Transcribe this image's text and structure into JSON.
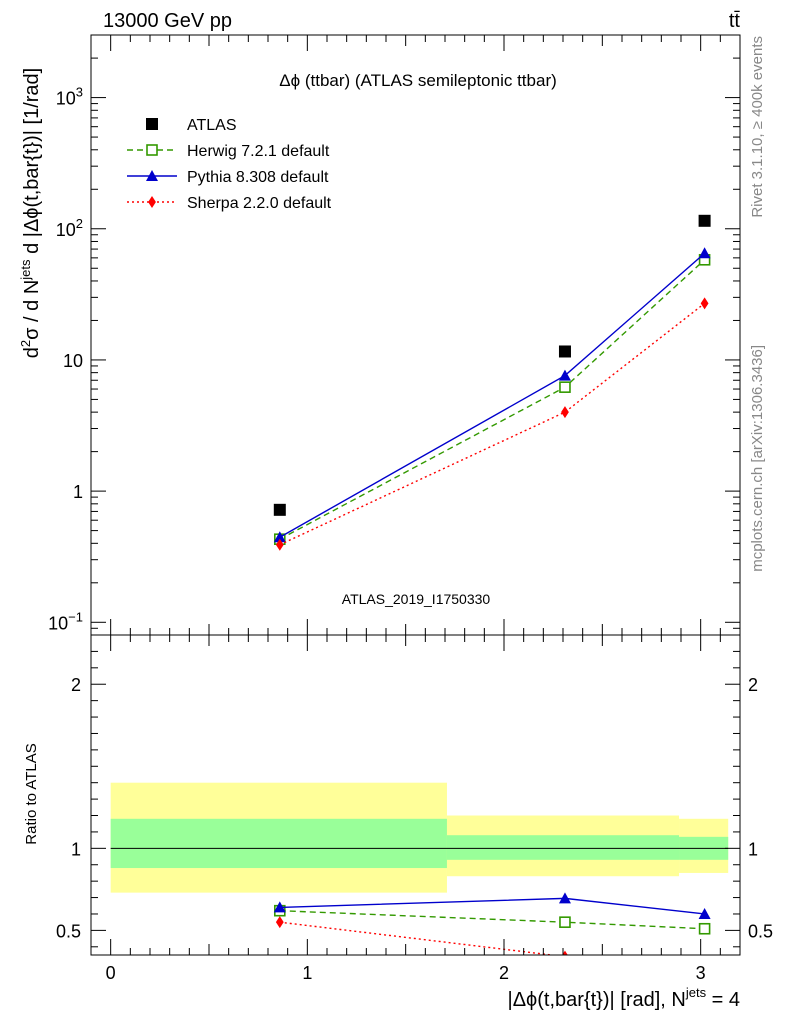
{
  "header": {
    "left": "13000 GeV pp",
    "right": "tt̄"
  },
  "side_text": {
    "rivet": "Rivet 3.1.10, ≥ 400k events",
    "mcplots": "mcplots.cern.ch [arXiv:1306.3436]"
  },
  "analysis_id": "ATLAS_2019_I1750330",
  "colors": {
    "atlas": "#000000",
    "herwig": "#339900",
    "pythia": "#0000cc",
    "sherpa": "#ff0000",
    "band_outer": "#ffff99",
    "band_inner": "#99ff99",
    "sidebar_text": "#888888",
    "watermark_text": "#999999"
  },
  "chart_data": [
    {
      "type": "scatter",
      "title": "Δϕ (ttbar) (ATLAS semileptonic ttbar)",
      "ylabel": "d²σ / d N^jets d |Δϕ(t,bar{t})| [1/rad]",
      "yscale": "log",
      "ylim": [
        0.08,
        3000
      ],
      "xlim": [
        -0.1,
        3.2
      ],
      "y_ticks": [
        {
          "value": 0.1,
          "base": "10",
          "exp": "−1"
        },
        {
          "value": 1,
          "base": "1",
          "exp": ""
        },
        {
          "value": 10,
          "base": "10",
          "exp": ""
        },
        {
          "value": 100,
          "base": "10",
          "exp": "2"
        },
        {
          "value": 1000,
          "base": "10",
          "exp": "3"
        }
      ],
      "legend_position": "top-left",
      "series": [
        {
          "name": "ATLAS",
          "key": "atlas",
          "marker": "square-filled",
          "line": "none",
          "x": [
            0.86,
            2.31,
            3.02
          ],
          "y": [
            0.72,
            11.6,
            115
          ]
        },
        {
          "name": "Herwig 7.2.1 default",
          "key": "herwig",
          "marker": "square-open",
          "line": "dashed",
          "x": [
            0.86,
            2.31,
            3.02
          ],
          "y": [
            0.43,
            6.2,
            58
          ]
        },
        {
          "name": "Pythia 8.308 default",
          "key": "pythia",
          "marker": "triangle",
          "line": "solid",
          "x": [
            0.86,
            2.31,
            3.02
          ],
          "y": [
            0.445,
            7.6,
            65
          ]
        },
        {
          "name": "Sherpa 2.2.0 default",
          "key": "sherpa",
          "marker": "diamond",
          "line": "dotted",
          "x": [
            0.86,
            2.31,
            3.02
          ],
          "y": [
            0.39,
            4.0,
            27
          ]
        }
      ]
    },
    {
      "type": "line",
      "ylabel": "Ratio to ATLAS",
      "xlabel": "|Δϕ(t,bar{t})| [rad], N^jets = 4",
      "ylim": [
        0.35,
        2.3
      ],
      "xlim": [
        -0.1,
        3.2
      ],
      "y_ticks": [
        0.5,
        1,
        2
      ],
      "y_tick_labels": [
        "0.5",
        "1",
        "2"
      ],
      "x_ticks": [
        0,
        1,
        2,
        3
      ],
      "x_tick_labels": [
        "0",
        "1",
        "2",
        "3"
      ],
      "bands": [
        {
          "x0": 0.0,
          "x1": 1.71,
          "outer": [
            0.73,
            1.4
          ],
          "inner": [
            0.88,
            1.18
          ]
        },
        {
          "x0": 1.71,
          "x1": 2.89,
          "outer": [
            0.83,
            1.2
          ],
          "inner": [
            0.93,
            1.08
          ]
        },
        {
          "x0": 2.89,
          "x1": 3.14,
          "outer": [
            0.85,
            1.18
          ],
          "inner": [
            0.93,
            1.07
          ]
        }
      ],
      "series": [
        {
          "name": "Herwig 7.2.1 default",
          "key": "herwig",
          "marker": "square-open",
          "line": "dashed",
          "x": [
            0.86,
            2.31,
            3.02
          ],
          "y": [
            0.62,
            0.55,
            0.51
          ]
        },
        {
          "name": "Pythia 8.308 default",
          "key": "pythia",
          "marker": "triangle",
          "line": "solid",
          "x": [
            0.86,
            2.31,
            3.02
          ],
          "y": [
            0.64,
            0.695,
            0.6
          ]
        },
        {
          "name": "Sherpa 2.2.0 default",
          "key": "sherpa",
          "marker": "diamond",
          "line": "dotted",
          "x": [
            0.86,
            2.31,
            3.02
          ],
          "y": [
            0.55,
            0.34,
            0.23
          ]
        }
      ]
    }
  ]
}
